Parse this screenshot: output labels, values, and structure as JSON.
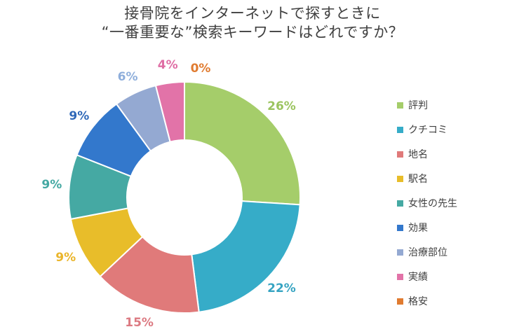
{
  "chart_data": {
    "type": "pie",
    "subtype": "donut",
    "title": "接骨院をインターネットで探すときに “一番重要な”検索キーワードはどれですか？",
    "title_lines": [
      "接骨院をインターネットで探すときに",
      "“一番重要な”検索キーワードはどれですか？"
    ],
    "categories": [
      "評判",
      "クチコミ",
      "地名",
      "駅名",
      "女性の先生",
      "効果",
      "治療部位",
      "実績",
      "格安"
    ],
    "values": [
      26,
      22,
      15,
      9,
      9,
      9,
      6,
      4,
      0
    ],
    "labels": [
      "26%",
      "22%",
      "15%",
      "9%",
      "9%",
      "9%",
      "6%",
      "4%",
      "0%"
    ],
    "colors": [
      "#a5cd6a",
      "#36acc8",
      "#e07a7a",
      "#e8bd2a",
      "#45a9a3",
      "#3378cc",
      "#94a9d2",
      "#e273a8",
      "#e07b30"
    ],
    "label_colors": [
      "#9bc45f",
      "#36a4c2",
      "#dc7a82",
      "#eab52a",
      "#43a8a2",
      "#2f68b8",
      "#8eaedb",
      "#df6da4",
      "#e07b30"
    ],
    "start_angle_deg": 0,
    "direction": "clockwise",
    "legend_position": "right",
    "unit": "%"
  },
  "legend": {
    "items": [
      {
        "label": "評判",
        "color": "#a5cd6a"
      },
      {
        "label": "クチコミ",
        "color": "#36acc8"
      },
      {
        "label": "地名",
        "color": "#e07a7a"
      },
      {
        "label": "駅名",
        "color": "#e8bd2a"
      },
      {
        "label": "女性の先生",
        "color": "#45a9a3"
      },
      {
        "label": "効果",
        "color": "#3378cc"
      },
      {
        "label": "治療部位",
        "color": "#94a9d2"
      },
      {
        "label": "実績",
        "color": "#e273a8"
      },
      {
        "label": "格安",
        "color": "#e07b30"
      }
    ]
  }
}
